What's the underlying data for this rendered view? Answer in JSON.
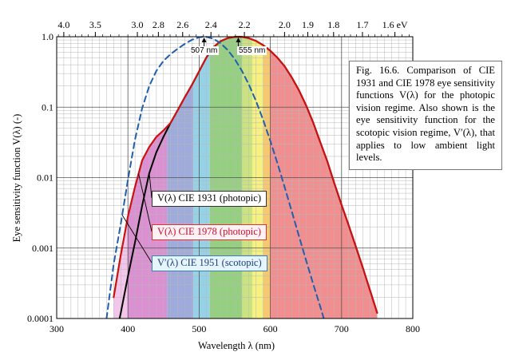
{
  "chart_data": {
    "type": "line",
    "title": "",
    "xlabel": "Wavelength λ (nm)",
    "ylabel": "Eye sensitivity function V(λ) (-)",
    "x_scale": "linear",
    "y_scale": "log",
    "xlim": [
      300,
      800
    ],
    "ylim": [
      0.0001,
      1.0
    ],
    "grid": true,
    "x_ticks": [
      "300",
      "400",
      "500",
      "600",
      "700",
      "800"
    ],
    "y_ticks": [
      "0.0001",
      "0.001",
      "0.01",
      "0.1",
      "1.0"
    ],
    "x_tick_values": [
      300,
      400,
      500,
      600,
      700,
      800
    ],
    "y_tick_values": [
      0.0001,
      0.001,
      0.01,
      0.1,
      1.0
    ],
    "top_axis": {
      "unit": "eV",
      "ticks": [
        {
          "ev": 4.0,
          "label": "4.0"
        },
        {
          "ev": 3.5,
          "label": "3.5"
        },
        {
          "ev": 3.0,
          "label": "3.0"
        },
        {
          "ev": 2.8,
          "label": "2.8"
        },
        {
          "ev": 2.6,
          "label": "2.6"
        },
        {
          "ev": 2.4,
          "label": "2.4"
        },
        {
          "ev": 2.2,
          "label": "2.2"
        },
        {
          "ev": 2.0,
          "label": "2.0"
        },
        {
          "ev": 1.9,
          "label": "1.9"
        },
        {
          "ev": 1.8,
          "label": "1.8"
        },
        {
          "ev": 1.7,
          "label": "1.7"
        },
        {
          "ev": 1.6,
          "label": "1.6 eV"
        }
      ]
    },
    "series": [
      {
        "name": "V(λ) CIE 1931 (photopic)",
        "color": "#000000",
        "style": "solid",
        "x": [
          380,
          390,
          400,
          410,
          420,
          430,
          440,
          450,
          460,
          470,
          480,
          490,
          500,
          510,
          520,
          530,
          540,
          550,
          555,
          560,
          570,
          580,
          590,
          600,
          610,
          620,
          630,
          640,
          650,
          660,
          670,
          680,
          690,
          700,
          710,
          720,
          730,
          740,
          750
        ],
        "y": [
          3.98e-05,
          0.00012,
          0.000396,
          0.00121,
          0.004,
          0.0116,
          0.023,
          0.038,
          0.06,
          0.091,
          0.139,
          0.208,
          0.323,
          0.503,
          0.71,
          0.862,
          0.954,
          0.995,
          1.0,
          0.995,
          0.952,
          0.87,
          0.757,
          0.631,
          0.503,
          0.381,
          0.265,
          0.175,
          0.107,
          0.061,
          0.032,
          0.017,
          0.0082,
          0.0041,
          0.0021,
          0.00105,
          0.00052,
          0.00025,
          0.00012
        ]
      },
      {
        "name": "V(λ) CIE 1978 (photopic)",
        "color": "#cc1111",
        "style": "solid",
        "x": [
          380,
          390,
          400,
          410,
          420,
          430,
          440,
          450,
          460,
          470,
          480,
          490,
          500,
          510,
          520,
          530,
          540,
          550,
          555,
          560,
          570,
          580,
          590,
          600,
          610,
          620,
          630,
          640,
          650,
          660,
          670,
          680,
          690,
          700,
          710,
          720,
          730,
          740,
          750
        ],
        "y": [
          0.0002,
          0.0008,
          0.0028,
          0.0074,
          0.0175,
          0.0273,
          0.0379,
          0.0468,
          0.06,
          0.091,
          0.139,
          0.208,
          0.323,
          0.503,
          0.71,
          0.862,
          0.954,
          0.995,
          1.0,
          0.995,
          0.952,
          0.87,
          0.757,
          0.631,
          0.503,
          0.381,
          0.265,
          0.175,
          0.107,
          0.061,
          0.032,
          0.017,
          0.0082,
          0.0041,
          0.0021,
          0.00105,
          0.00052,
          0.00025,
          0.00012
        ]
      },
      {
        "name": "V′(λ) CIE 1951 (scotopic)",
        "color": "#1f5fae",
        "style": "dashed",
        "x": [
          370,
          380,
          390,
          400,
          410,
          420,
          430,
          440,
          450,
          460,
          470,
          480,
          490,
          500,
          507,
          510,
          520,
          530,
          540,
          550,
          560,
          570,
          580,
          590,
          600,
          610,
          620,
          630,
          640,
          650,
          660,
          670,
          675
        ],
        "y": [
          0.0001,
          0.000589,
          0.002209,
          0.00929,
          0.03484,
          0.0966,
          0.1998,
          0.3281,
          0.455,
          0.567,
          0.676,
          0.793,
          0.904,
          0.982,
          1.0,
          0.997,
          0.935,
          0.811,
          0.65,
          0.481,
          0.3288,
          0.2076,
          0.1212,
          0.0655,
          0.03315,
          0.01593,
          0.00737,
          0.003335,
          0.001497,
          0.000677,
          0.0003129,
          0.000148,
          0.0001
        ]
      }
    ],
    "annotations": [
      {
        "text": "507 nm",
        "x": 507
      },
      {
        "text": "555 nm",
        "x": 555
      }
    ],
    "spectral_bands": [
      {
        "from": 400,
        "to": 455,
        "color": "#d98ad0"
      },
      {
        "from": 455,
        "to": 492,
        "color": "#9aa6d8"
      },
      {
        "from": 492,
        "to": 515,
        "color": "#8fd0e6"
      },
      {
        "from": 515,
        "to": 560,
        "color": "#8fce7a"
      },
      {
        "from": 560,
        "to": 575,
        "color": "#c8e07a"
      },
      {
        "from": 575,
        "to": 590,
        "color": "#f6f07a"
      },
      {
        "from": 590,
        "to": 600,
        "color": "#f6c56a"
      },
      {
        "from": 600,
        "to": 750,
        "color": "#f0888a"
      }
    ]
  },
  "caption": "Fig. 16.6. Comparison of CIE 1931 and CIE 1978 eye sensitivity functions V(λ) for the photopic vision regime. Also shown is the eye sensitivity function for the scotopic vision regime, V′(λ), that applies to low ambient light levels.",
  "legend_labels": {
    "cie1931": "V(λ) CIE 1931 (photopic)",
    "cie1978": "V(λ) CIE 1978 (photopic)",
    "scotopic": "V′(λ) CIE 1951 (scotopic)"
  },
  "peak_labels": {
    "scotopic": "507 nm",
    "photopic": "555 nm"
  }
}
